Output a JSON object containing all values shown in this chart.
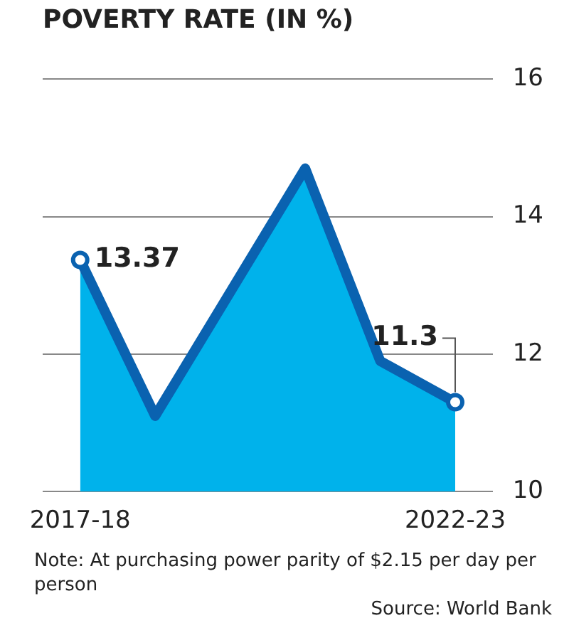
{
  "chart_data": {
    "type": "area",
    "title": "POVERTY RATE (IN %)",
    "categories": [
      "2017-18",
      null,
      null,
      null,
      null,
      "2022-23"
    ],
    "series": [
      {
        "color": "#0a62b0",
        "values": [
          13.37,
          11.1,
          12.9,
          14.7,
          11.9,
          11.3
        ],
        "value_labels": [
          "13.37",
          null,
          null,
          null,
          null,
          "11.3"
        ]
      }
    ],
    "ylim": [
      10,
      16
    ],
    "yticks": [
      10,
      12,
      14,
      16
    ],
    "grid": "y",
    "legend": false,
    "annotations": [
      "Note: At purchasing power parity of $2.15 per day per person",
      "Source: World Bank"
    ]
  }
}
